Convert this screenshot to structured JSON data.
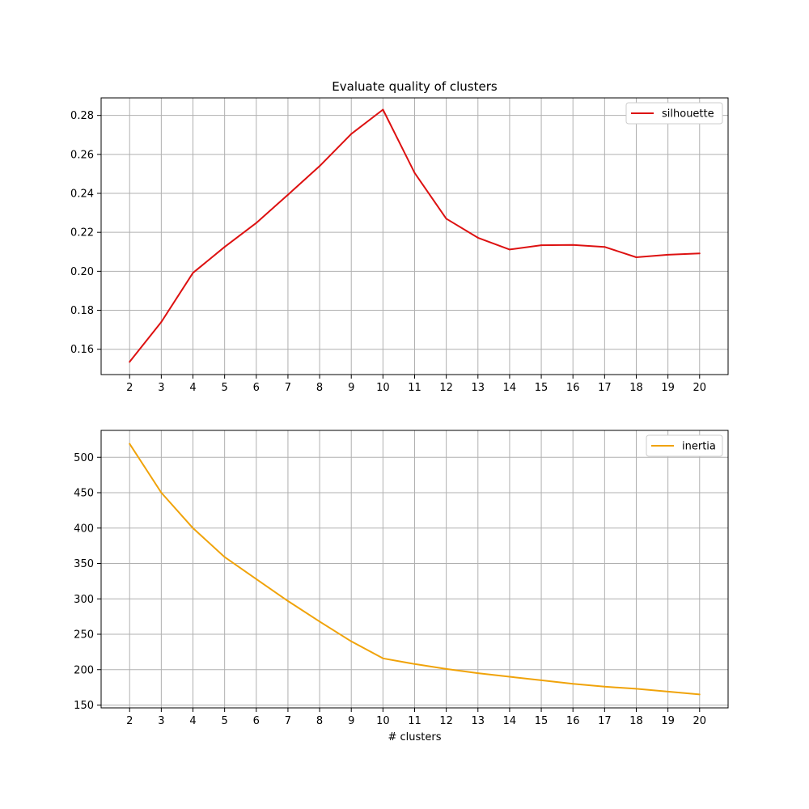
{
  "chart_data": [
    {
      "type": "line",
      "title": "Evaluate quality of clusters",
      "xlabel": "",
      "ylabel": "",
      "x": [
        2,
        3,
        4,
        5,
        6,
        7,
        8,
        9,
        10,
        11,
        12,
        13,
        14,
        15,
        16,
        17,
        18,
        19,
        20
      ],
      "xlim": [
        1.1,
        20.9
      ],
      "ylim": [
        0.147,
        0.289
      ],
      "yticks": [
        "0.16",
        "0.18",
        "0.20",
        "0.22",
        "0.24",
        "0.26",
        "0.28"
      ],
      "ytick_values": [
        0.16,
        0.18,
        0.2,
        0.22,
        0.24,
        0.26,
        0.28
      ],
      "grid": true,
      "legend_position": "top-right",
      "series": [
        {
          "name": "silhouette",
          "color": "#dd1111",
          "values": [
            0.1535,
            0.174,
            0.1992,
            0.2125,
            0.2248,
            0.2393,
            0.254,
            0.2705,
            0.283,
            0.2505,
            0.227,
            0.2172,
            0.2112,
            0.2134,
            0.2135,
            0.2125,
            0.2072,
            0.2085,
            0.2092
          ]
        }
      ]
    },
    {
      "type": "line",
      "title": "",
      "xlabel": "# clusters",
      "ylabel": "",
      "x": [
        2,
        3,
        4,
        5,
        6,
        7,
        8,
        9,
        10,
        11,
        12,
        13,
        14,
        15,
        16,
        17,
        18,
        19,
        20
      ],
      "xlim": [
        1.1,
        20.9
      ],
      "ylim": [
        146,
        538
      ],
      "yticks": [
        "150",
        "200",
        "250",
        "300",
        "350",
        "400",
        "450",
        "500"
      ],
      "ytick_values": [
        150,
        200,
        250,
        300,
        350,
        400,
        450,
        500
      ],
      "grid": true,
      "legend_position": "top-right",
      "series": [
        {
          "name": "inertia",
          "color": "#f0a30a",
          "values": [
            519,
            450,
            400,
            359,
            328,
            297,
            268,
            240,
            216,
            208,
            201,
            195,
            190,
            185,
            180,
            176,
            173,
            169,
            165
          ]
        }
      ]
    }
  ]
}
